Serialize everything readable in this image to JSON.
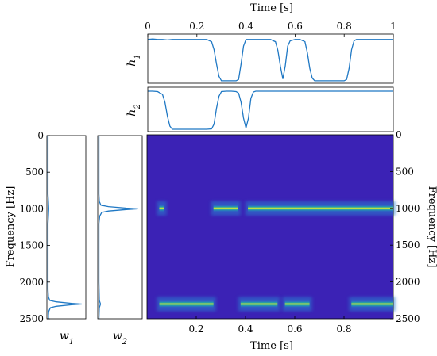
{
  "chart_data": [
    {
      "id": "h1",
      "type": "line",
      "ylabel": "h",
      "ylabel_sub": "1",
      "xlabel": "Time [s]",
      "xlim": [
        0,
        1
      ],
      "ylim": [
        0,
        1
      ],
      "xticks": [
        0,
        0.2,
        0.4,
        0.6,
        0.8,
        1
      ],
      "xtick_labels": [
        "0",
        "0.2",
        "0.4",
        "0.6",
        "0.8",
        "1"
      ],
      "x": [
        0,
        0.02,
        0.04,
        0.06,
        0.08,
        0.1,
        0.12,
        0.14,
        0.16,
        0.18,
        0.2,
        0.22,
        0.24,
        0.26,
        0.27,
        0.28,
        0.29,
        0.3,
        0.32,
        0.34,
        0.36,
        0.37,
        0.38,
        0.39,
        0.4,
        0.42,
        0.44,
        0.46,
        0.48,
        0.5,
        0.52,
        0.53,
        0.54,
        0.55,
        0.56,
        0.57,
        0.58,
        0.6,
        0.62,
        0.64,
        0.65,
        0.66,
        0.67,
        0.68,
        0.7,
        0.72,
        0.74,
        0.76,
        0.78,
        0.8,
        0.81,
        0.82,
        0.83,
        0.84,
        0.85,
        0.86,
        0.88,
        0.9,
        0.92,
        0.94,
        0.96,
        0.98,
        1.0
      ],
      "values": [
        0.95,
        0.96,
        0.95,
        0.95,
        0.94,
        0.95,
        0.95,
        0.95,
        0.95,
        0.95,
        0.95,
        0.95,
        0.95,
        0.9,
        0.72,
        0.4,
        0.12,
        0.02,
        0.02,
        0.02,
        0.02,
        0.05,
        0.4,
        0.8,
        0.95,
        0.95,
        0.95,
        0.95,
        0.95,
        0.95,
        0.9,
        0.7,
        0.35,
        0.06,
        0.35,
        0.8,
        0.92,
        0.95,
        0.95,
        0.9,
        0.65,
        0.3,
        0.08,
        0.02,
        0.02,
        0.02,
        0.02,
        0.02,
        0.02,
        0.02,
        0.05,
        0.3,
        0.72,
        0.92,
        0.95,
        0.95,
        0.95,
        0.95,
        0.95,
        0.95,
        0.95,
        0.95,
        0.95
      ]
    },
    {
      "id": "h2",
      "type": "line",
      "ylabel": "h",
      "ylabel_sub": "2",
      "xlim": [
        0,
        1
      ],
      "ylim": [
        0,
        1
      ],
      "x": [
        0,
        0.02,
        0.04,
        0.06,
        0.07,
        0.08,
        0.09,
        0.1,
        0.12,
        0.14,
        0.16,
        0.18,
        0.2,
        0.22,
        0.24,
        0.26,
        0.27,
        0.28,
        0.29,
        0.3,
        0.32,
        0.34,
        0.36,
        0.37,
        0.38,
        0.39,
        0.4,
        0.41,
        0.42,
        0.43,
        0.44,
        0.46,
        0.48,
        0.5,
        0.55,
        0.6,
        0.65,
        0.7,
        0.75,
        0.8,
        0.85,
        0.9,
        0.95,
        1.0
      ],
      "values": [
        0.98,
        0.98,
        0.97,
        0.9,
        0.7,
        0.35,
        0.1,
        0.02,
        0.02,
        0.02,
        0.02,
        0.02,
        0.02,
        0.02,
        0.02,
        0.03,
        0.15,
        0.55,
        0.85,
        0.97,
        0.98,
        0.98,
        0.97,
        0.93,
        0.7,
        0.3,
        0.05,
        0.3,
        0.8,
        0.96,
        0.98,
        0.98,
        0.98,
        0.98,
        0.98,
        0.98,
        0.98,
        0.98,
        0.98,
        0.98,
        0.98,
        0.98,
        0.98,
        0.98
      ]
    },
    {
      "id": "w1",
      "type": "line",
      "orientation": "vertical",
      "xlabel": "w",
      "xlabel_sub": "1",
      "ylabel": "Frequency [Hz]",
      "ylim": [
        0,
        2500
      ],
      "yticks": [
        0,
        500,
        1000,
        1500,
        2000,
        2500
      ],
      "ytick_labels": [
        "0",
        "500",
        "1000",
        "1500",
        "2000",
        "2500"
      ],
      "y": [
        0,
        200,
        400,
        600,
        800,
        900,
        1000,
        1100,
        1200,
        1500,
        1800,
        2100,
        2200,
        2250,
        2270,
        2290,
        2300,
        2310,
        2330,
        2350,
        2400,
        2450,
        2500
      ],
      "values": [
        0.01,
        0.01,
        0.01,
        0.01,
        0.01,
        0.02,
        0.03,
        0.02,
        0.01,
        0.01,
        0.01,
        0.01,
        0.02,
        0.06,
        0.25,
        0.7,
        1.0,
        0.7,
        0.25,
        0.08,
        0.03,
        0.02,
        0.02
      ]
    },
    {
      "id": "w2",
      "type": "line",
      "orientation": "vertical",
      "xlabel": "w",
      "xlabel_sub": "2",
      "ylim": [
        0,
        2500
      ],
      "y": [
        0,
        400,
        800,
        900,
        950,
        970,
        990,
        1000,
        1010,
        1030,
        1050,
        1100,
        1200,
        1600,
        2000,
        2250,
        2300,
        2350,
        2500
      ],
      "values": [
        0.01,
        0.01,
        0.01,
        0.02,
        0.06,
        0.25,
        0.7,
        1.0,
        0.7,
        0.25,
        0.08,
        0.03,
        0.01,
        0.01,
        0.01,
        0.02,
        0.05,
        0.02,
        0.01
      ]
    },
    {
      "id": "spectrogram",
      "type": "heatmap",
      "xlabel": "Time [s]",
      "ylabel": "Frequency [Hz]",
      "xlim": [
        0,
        1
      ],
      "ylim": [
        0,
        2500
      ],
      "xticks": [
        0.2,
        0.4,
        0.6,
        0.8
      ],
      "xtick_labels": [
        "0.2",
        "0.4",
        "0.6",
        "0.8"
      ],
      "yticks": [
        0,
        500,
        1000,
        1500,
        2000,
        2500
      ],
      "ytick_labels": [
        "0",
        "500",
        "1000",
        "1500",
        "2000",
        "2500"
      ],
      "background_color": "#3b22b5",
      "colormap": [
        "#3b22b5",
        "#2a7fd0",
        "#1fb3a0",
        "#e6ee2a"
      ],
      "bands": [
        {
          "frequency": 1000,
          "segments": [
            [
              0.05,
              0.07
            ],
            [
              0.27,
              0.37
            ],
            [
              0.41,
              1.0
            ]
          ]
        },
        {
          "frequency": 2300,
          "segments": [
            [
              0.05,
              0.27
            ],
            [
              0.38,
              0.53
            ],
            [
              0.56,
              0.66
            ],
            [
              0.83,
              1.0
            ]
          ]
        }
      ]
    }
  ],
  "colors": {
    "line": "#1f78c4",
    "axes": "#000000"
  }
}
